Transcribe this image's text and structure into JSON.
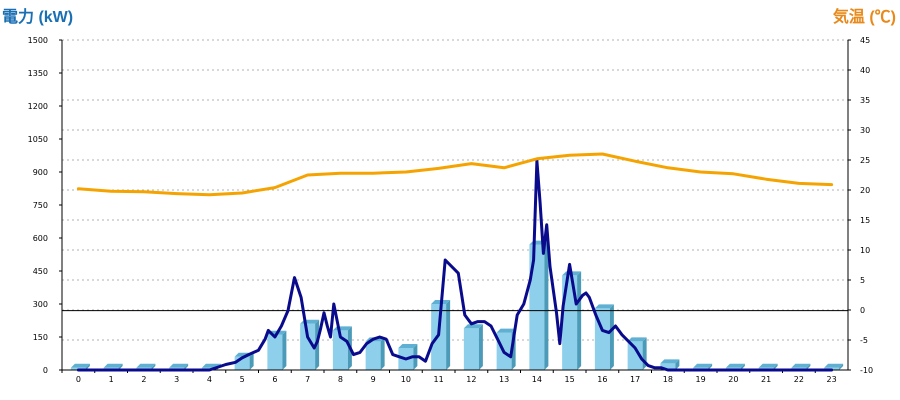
{
  "chart_data": {
    "type": "bar",
    "left_axis_title": "電力 (kW)",
    "right_axis_title": "気温 (℃)",
    "left_axis": {
      "min": 0,
      "max": 1500,
      "step": 150,
      "ticks": [
        "0",
        "150",
        "300",
        "450",
        "600",
        "750",
        "900",
        "1050",
        "1200",
        "1350",
        "1500"
      ]
    },
    "right_axis": {
      "min": -10,
      "max": 45,
      "step": 5,
      "ticks": [
        "-10",
        "-5",
        "0",
        "5",
        "10",
        "15",
        "20",
        "25",
        "30",
        "35",
        "40",
        "45"
      ]
    },
    "categories": [
      "0",
      "1",
      "2",
      "3",
      "4",
      "5",
      "6",
      "7",
      "8",
      "9",
      "10",
      "11",
      "12",
      "13",
      "14",
      "15",
      "16",
      "17",
      "18",
      "19",
      "20",
      "21",
      "22",
      "23"
    ],
    "grid": true,
    "reference_line_kw": 270,
    "colors": {
      "bar": "#8ed0ec",
      "bar_side": "#4a9ab8",
      "power_line": "#0a0a8c",
      "temp_line": "#f5a300",
      "grid": "#b0b0b0",
      "axis": "#000000"
    },
    "series": [
      {
        "kind": "bar",
        "values": [
          10,
          10,
          10,
          10,
          10,
          60,
          160,
          210,
          180,
          130,
          100,
          300,
          190,
          170,
          570,
          430,
          280,
          130,
          30,
          10,
          10,
          10,
          10,
          10
        ]
      },
      {
        "kind": "line",
        "axis": "left",
        "x": [
          0,
          1,
          2,
          3,
          4,
          4.5,
          4.8,
          5,
          5.2,
          5.5,
          5.7,
          5.8,
          6,
          6.2,
          6.4,
          6.6,
          6.8,
          7,
          7.2,
          7.3,
          7.4,
          7.5,
          7.6,
          7.7,
          7.8,
          8,
          8.2,
          8.4,
          8.6,
          8.8,
          9,
          9.2,
          9.4,
          9.6,
          9.8,
          10,
          10.2,
          10.4,
          10.6,
          10.8,
          11,
          11.2,
          11.6,
          11.8,
          12,
          12.2,
          12.4,
          12.6,
          12.8,
          13,
          13.2,
          13.4,
          13.6,
          13.8,
          13.9,
          14,
          14.1,
          14.2,
          14.3,
          14.4,
          14.6,
          14.7,
          14.8,
          15,
          15.2,
          15.4,
          15.5,
          15.6,
          15.8,
          16,
          16.2,
          16.4,
          16.6,
          16.8,
          17,
          17.2,
          17.4,
          17.6,
          17.8,
          18,
          18.5,
          19,
          20,
          21,
          22,
          23
        ],
        "values": [
          0,
          0,
          0,
          0,
          0,
          25,
          35,
          55,
          70,
          90,
          140,
          180,
          150,
          200,
          270,
          420,
          330,
          150,
          100,
          130,
          190,
          260,
          200,
          150,
          300,
          150,
          130,
          70,
          80,
          120,
          140,
          150,
          140,
          70,
          60,
          50,
          60,
          60,
          40,
          120,
          160,
          500,
          440,
          250,
          210,
          220,
          220,
          200,
          140,
          80,
          60,
          250,
          300,
          410,
          500,
          950,
          760,
          530,
          660,
          470,
          260,
          120,
          290,
          480,
          300,
          340,
          350,
          330,
          250,
          180,
          170,
          200,
          160,
          130,
          100,
          50,
          20,
          10,
          10,
          0,
          0,
          0,
          0,
          0,
          0,
          0
        ]
      },
      {
        "kind": "line",
        "axis": "right",
        "x": [
          0,
          1,
          2,
          3,
          4,
          5,
          6,
          7,
          8,
          9,
          10,
          11,
          12,
          13,
          14,
          15,
          16,
          17,
          18,
          19,
          20,
          21,
          22,
          23
        ],
        "values": [
          20.2,
          19.8,
          19.7,
          19.4,
          19.2,
          19.5,
          20.4,
          22.5,
          22.8,
          22.8,
          23.0,
          23.6,
          24.4,
          23.7,
          25.2,
          25.8,
          26.0,
          24.8,
          23.7,
          23.0,
          22.7,
          21.8,
          21.1,
          20.9
        ]
      }
    ]
  }
}
